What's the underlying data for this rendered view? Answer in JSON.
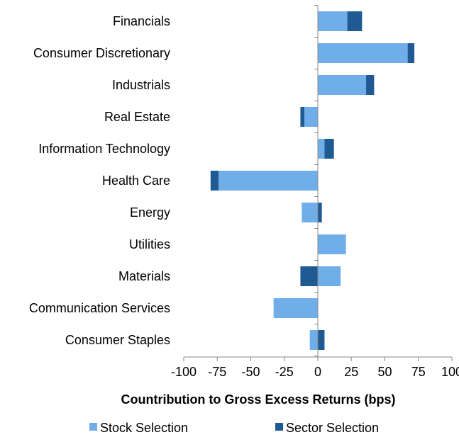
{
  "chart_data": {
    "type": "bar",
    "orientation": "horizontal",
    "stacked": true,
    "categories": [
      "Financials",
      "Consumer Discretionary",
      "Industrials",
      "Real Estate",
      "Information Technology",
      "Health Care",
      "Energy",
      "Utilities",
      "Materials",
      "Communication Services",
      "Consumer Staples"
    ],
    "series": [
      {
        "name": "Stock Selection",
        "color": "#6FAEE8",
        "values": [
          22,
          67,
          36,
          -10,
          5,
          -74,
          -12,
          21,
          17,
          -33,
          -6
        ]
      },
      {
        "name": "Sector Selection",
        "color": "#1F5A93",
        "values": [
          11,
          5,
          6,
          -3,
          7,
          -6,
          3,
          0,
          -13,
          0,
          5
        ]
      }
    ],
    "title": "",
    "xlabel": "Countribution to Gross Excess Returns (bps)",
    "ylabel": "",
    "xlim": [
      -100,
      100
    ],
    "xticks": [
      "-100",
      "-75",
      "-50",
      "-25",
      "0",
      "25",
      "50",
      "75",
      "100"
    ],
    "grid": false,
    "legend_position": "bottom"
  }
}
